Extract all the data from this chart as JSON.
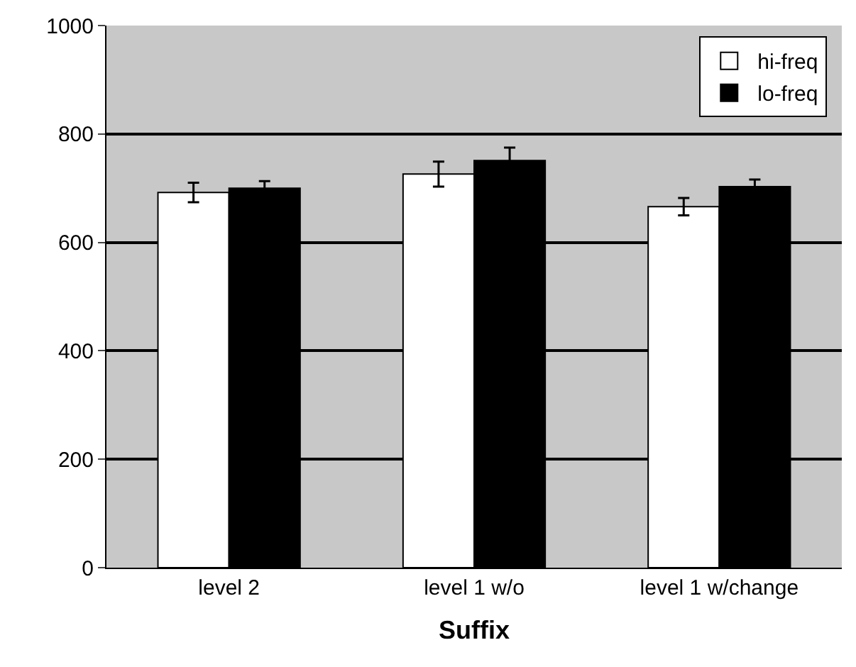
{
  "chart_data": {
    "type": "bar",
    "xlabel": "Suffix",
    "categories": [
      "level 2",
      "level 1 w/o",
      "level 1 w/change"
    ],
    "series": [
      {
        "name": "hi-freq",
        "color": "#ffffff",
        "values": [
          692,
          726,
          666
        ],
        "errors": [
          18,
          23,
          16
        ]
      },
      {
        "name": "lo-freq",
        "color": "#000000",
        "values": [
          700,
          751,
          703
        ],
        "errors": [
          13,
          24,
          13
        ]
      }
    ],
    "ylim": [
      0,
      1000
    ],
    "yticks": [
      0,
      200,
      400,
      600,
      800,
      1000
    ],
    "grid": "y",
    "legend": "top right"
  }
}
